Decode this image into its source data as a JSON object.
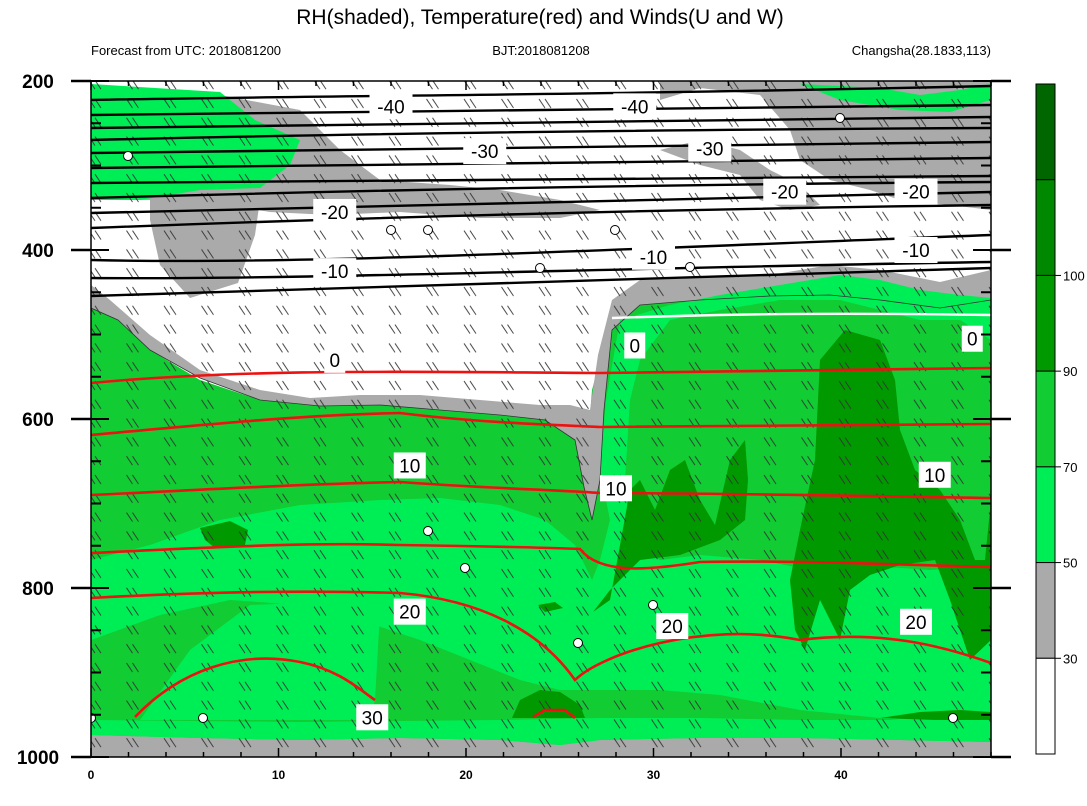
{
  "chart_data": {
    "type": "contour",
    "title": "RH(shaded), Temperature(red) and Winds(U and W)",
    "subtitle_left": "Forecast from UTC: 2018081200",
    "subtitle_center": "BJT:2018081208",
    "subtitle_right": "Changsha(28.1833,113)",
    "x_ticks": [
      "0",
      "10",
      "20",
      "30",
      "40"
    ],
    "x_range": [
      0,
      48
    ],
    "y_ticks": [
      "200",
      "400",
      "600",
      "800",
      "1000"
    ],
    "y_range": [
      200,
      1000
    ],
    "y_reversed": true,
    "colorbar_labels": [
      "30",
      "50",
      "70",
      "90",
      "100"
    ],
    "colorbar_colors": [
      "#ffffff",
      "#aaaaaa",
      "#00ee55",
      "#11cc33",
      "#009900",
      "#008800",
      "#006600"
    ],
    "temperature_contour_labels": [
      {
        "text": "-40",
        "x": 16,
        "y": 230
      },
      {
        "text": "-40",
        "x": 29,
        "y": 230
      },
      {
        "text": "-30",
        "x": 21,
        "y": 283
      },
      {
        "text": "-30",
        "x": 33,
        "y": 280
      },
      {
        "text": "-20",
        "x": 13,
        "y": 355
      },
      {
        "text": "-20",
        "x": 37,
        "y": 331
      },
      {
        "text": "-20",
        "x": 44,
        "y": 331
      },
      {
        "text": "-10",
        "x": 13,
        "y": 425
      },
      {
        "text": "-10",
        "x": 30,
        "y": 408
      },
      {
        "text": "-10",
        "x": 44,
        "y": 400
      },
      {
        "text": "0",
        "x": 13,
        "y": 530
      },
      {
        "text": "0",
        "x": 29,
        "y": 513
      },
      {
        "text": "0",
        "x": 47,
        "y": 505
      },
      {
        "text": "10",
        "x": 17,
        "y": 655
      },
      {
        "text": "10",
        "x": 28,
        "y": 682
      },
      {
        "text": "10",
        "x": 45,
        "y": 666
      },
      {
        "text": "20",
        "x": 17,
        "y": 828
      },
      {
        "text": "20",
        "x": 31,
        "y": 845
      },
      {
        "text": "20",
        "x": 44,
        "y": 840
      },
      {
        "text": "30",
        "x": 15,
        "y": 953
      }
    ]
  }
}
